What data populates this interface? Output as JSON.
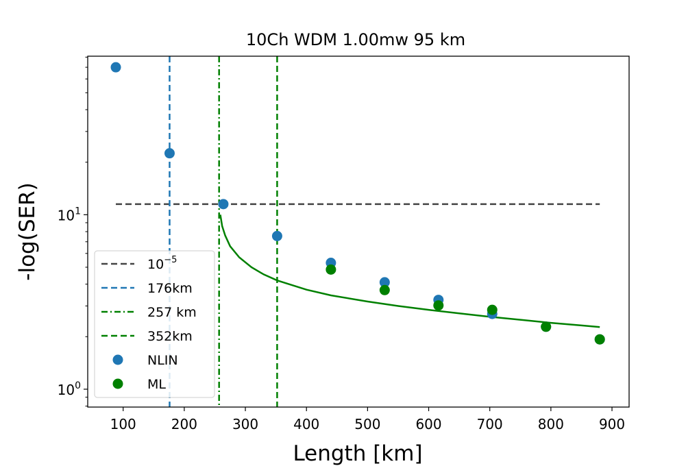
{
  "chart_data": {
    "type": "scatter",
    "title": "10Ch WDM 1.00mw 95 km",
    "xlabel": "Length [km]",
    "ylabel": "-log(SER)",
    "xlim": [
      42,
      928
    ],
    "ylim": [
      0.79,
      81
    ],
    "yscale": "log",
    "x_ticks": [
      100,
      200,
      300,
      400,
      500,
      600,
      700,
      800,
      900
    ],
    "x_tick_labels": [
      "100",
      "200",
      "300",
      "400",
      "500",
      "600",
      "700",
      "800",
      "900"
    ],
    "y_major_ticks": [
      {
        "value": 1,
        "base": "10",
        "exp": "0"
      },
      {
        "value": 10,
        "base": "10",
        "exp": "1"
      }
    ],
    "grid": false,
    "legend_position": "lower-left",
    "reference_lines": [
      {
        "name": "10",
        "name_exp": "−5",
        "orientation": "horizontal",
        "y": 11.5,
        "x_range": [
          88,
          880
        ],
        "style": "dashed",
        "color": "#444444"
      },
      {
        "name": "176km",
        "orientation": "vertical",
        "x": 176,
        "style": "dashed",
        "color": "#1f77b4"
      },
      {
        "name": "257 km",
        "orientation": "vertical",
        "x": 257,
        "style": "dashdot",
        "color": "#008000"
      },
      {
        "name": "352km",
        "orientation": "vertical",
        "x": 352,
        "style": "dashed",
        "color": "#008000"
      }
    ],
    "fit_curve": {
      "color": "#008000",
      "points": [
        [
          259,
          10.0
        ],
        [
          262,
          8.6
        ],
        [
          267,
          7.6
        ],
        [
          275,
          6.6
        ],
        [
          290,
          5.7
        ],
        [
          310,
          5.0
        ],
        [
          330,
          4.55
        ],
        [
          352,
          4.2
        ],
        [
          400,
          3.72
        ],
        [
          440,
          3.45
        ],
        [
          500,
          3.18
        ],
        [
          550,
          3.0
        ],
        [
          600,
          2.85
        ],
        [
          650,
          2.72
        ],
        [
          700,
          2.6
        ],
        [
          750,
          2.5
        ],
        [
          800,
          2.4
        ],
        [
          850,
          2.32
        ],
        [
          880,
          2.27
        ]
      ]
    },
    "series": [
      {
        "name": "NLIN",
        "color": "#1f77b4",
        "points": [
          [
            88,
            70
          ],
          [
            176,
            22.5
          ],
          [
            264,
            11.5
          ],
          [
            352,
            7.55
          ],
          [
            440,
            5.3
          ],
          [
            528,
            4.1
          ],
          [
            616,
            3.25
          ],
          [
            704,
            2.7
          ],
          [
            792,
            2.28
          ],
          [
            880,
            1.93
          ]
        ]
      },
      {
        "name": "ML",
        "color": "#008000",
        "points": [
          [
            440,
            4.85
          ],
          [
            528,
            3.7
          ],
          [
            616,
            3.02
          ],
          [
            704,
            2.85
          ],
          [
            792,
            2.28
          ],
          [
            880,
            1.93
          ]
        ]
      }
    ]
  }
}
